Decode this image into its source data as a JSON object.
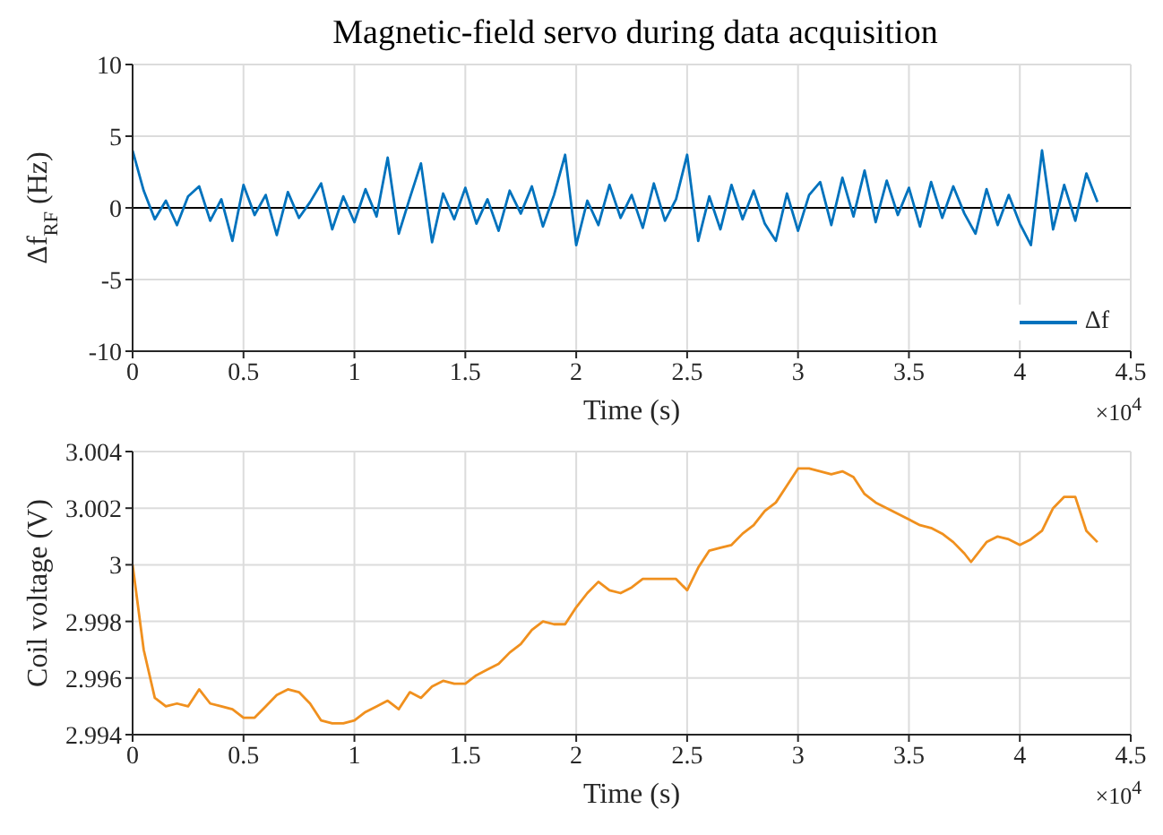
{
  "chart_data": [
    {
      "type": "line",
      "title": "Magnetic-field servo during data acquisition",
      "xlabel": "Time (s)",
      "ylabel": "Δf$_{RF}$ (Hz)",
      "annotations": [
        "×10$^{4}$"
      ],
      "x": [
        0,
        0.05,
        0.1,
        0.15,
        0.2,
        0.25,
        0.3,
        0.35,
        0.4,
        0.45,
        0.5,
        0.55,
        0.6,
        0.65,
        0.7,
        0.75,
        0.8,
        0.85,
        0.9,
        0.95,
        1,
        1.05,
        1.1,
        1.15,
        1.2,
        1.25,
        1.3,
        1.35,
        1.4,
        1.45,
        1.5,
        1.55,
        1.6,
        1.65,
        1.7,
        1.75,
        1.8,
        1.85,
        1.9,
        1.95,
        2,
        2.05,
        2.1,
        2.15,
        2.2,
        2.25,
        2.3,
        2.35,
        2.4,
        2.45,
        2.5,
        2.55,
        2.6,
        2.65,
        2.7,
        2.75,
        2.8,
        2.85,
        2.9,
        2.95,
        3,
        3.05,
        3.1,
        3.15,
        3.2,
        3.25,
        3.3,
        3.35,
        3.4,
        3.45,
        3.5,
        3.55,
        3.6,
        3.65,
        3.7,
        3.75,
        3.8,
        3.85,
        3.9,
        3.95,
        4,
        4.05,
        4.1,
        4.15,
        4.2,
        4.25,
        4.3,
        4.35
      ],
      "series": [
        {
          "name": "Δf",
          "color": "#0072bd",
          "values": [
            4,
            1.2,
            -0.8,
            0.5,
            -1.2,
            0.8,
            1.5,
            -0.9,
            0.6,
            -2.3,
            1.6,
            -0.5,
            0.9,
            -1.9,
            1.1,
            -0.7,
            0.4,
            1.7,
            -1.5,
            0.8,
            -1.0,
            1.3,
            -0.6,
            3.5,
            -1.8,
            0.7,
            3.1,
            -2.4,
            1.0,
            -0.8,
            1.4,
            -1.1,
            0.6,
            -1.6,
            1.2,
            -0.4,
            1.5,
            -1.3,
            0.9,
            3.7,
            -2.6,
            0.5,
            -1.2,
            1.6,
            -0.7,
            0.9,
            -1.4,
            1.7,
            -0.9,
            0.6,
            3.7,
            -2.3,
            0.8,
            -1.5,
            1.6,
            -0.8,
            1.2,
            -1.1,
            -2.3,
            1.0,
            -1.6,
            0.9,
            1.8,
            -1.2,
            2.1,
            -0.6,
            2.6,
            -1.0,
            1.9,
            -0.5,
            1.4,
            -1.3,
            1.8,
            -0.7,
            1.5,
            -0.4,
            -1.8,
            1.3,
            -1.2,
            0.9,
            -1.1,
            -2.6,
            4.0,
            -1.5,
            1.6,
            -0.9,
            2.4,
            0.4
          ]
        }
      ],
      "xlim": [
        0,
        4.5
      ],
      "xticks": [
        0,
        0.5,
        1,
        1.5,
        2,
        2.5,
        3,
        3.5,
        4,
        4.5
      ],
      "ylim": [
        -10,
        10
      ],
      "yticks": [
        -10,
        -5,
        0,
        5,
        10
      ],
      "grid": true,
      "legend": "bottom right",
      "ref_lines": [
        {
          "axis": "y",
          "value": 0,
          "color": "#000000"
        }
      ]
    },
    {
      "type": "line",
      "xlabel": "Time (s)",
      "ylabel": "Coil voltage (V)",
      "annotations": [
        "×10$^{4}$"
      ],
      "x": [
        0,
        0.05,
        0.1,
        0.15,
        0.2,
        0.25,
        0.3,
        0.35,
        0.4,
        0.45,
        0.5,
        0.55,
        0.6,
        0.65,
        0.7,
        0.75,
        0.8,
        0.85,
        0.9,
        0.95,
        1,
        1.05,
        1.1,
        1.15,
        1.2,
        1.25,
        1.3,
        1.35,
        1.4,
        1.45,
        1.5,
        1.55,
        1.6,
        1.65,
        1.7,
        1.75,
        1.8,
        1.85,
        1.9,
        1.95,
        2,
        2.05,
        2.1,
        2.15,
        2.2,
        2.25,
        2.3,
        2.35,
        2.4,
        2.45,
        2.5,
        2.55,
        2.6,
        2.65,
        2.7,
        2.75,
        2.8,
        2.85,
        2.9,
        2.95,
        3,
        3.05,
        3.1,
        3.15,
        3.2,
        3.25,
        3.3,
        3.35,
        3.4,
        3.45,
        3.5,
        3.55,
        3.6,
        3.65,
        3.7,
        3.75,
        3.78,
        3.85,
        3.9,
        3.95,
        4,
        4.05,
        4.1,
        4.15,
        4.2,
        4.25,
        4.3,
        4.35
      ],
      "series": [
        {
          "color": "#f0901e",
          "values": [
            3.0,
            2.997,
            2.9953,
            2.995,
            2.9951,
            2.995,
            2.9956,
            2.9951,
            2.995,
            2.9949,
            2.9946,
            2.9946,
            2.995,
            2.9954,
            2.9956,
            2.9955,
            2.9951,
            2.9945,
            2.9944,
            2.9944,
            2.9945,
            2.9948,
            2.995,
            2.9952,
            2.9949,
            2.9955,
            2.9953,
            2.9957,
            2.9959,
            2.9958,
            2.9958,
            2.9961,
            2.9963,
            2.9965,
            2.9969,
            2.9972,
            2.9977,
            2.998,
            2.9979,
            2.9979,
            2.9985,
            2.999,
            2.9994,
            2.9991,
            2.999,
            2.9992,
            2.9995,
            2.9995,
            2.9995,
            2.9995,
            2.9991,
            2.9999,
            3.0005,
            3.0006,
            3.0007,
            3.0011,
            3.0014,
            3.0019,
            3.0022,
            3.0028,
            3.0034,
            3.0034,
            3.0033,
            3.0032,
            3.0033,
            3.0031,
            3.0025,
            3.0022,
            3.002,
            3.0018,
            3.0016,
            3.0014,
            3.0013,
            3.0011,
            3.0008,
            3.0004,
            3.0001,
            3.0008,
            3.001,
            3.0009,
            3.0007,
            3.0009,
            3.0012,
            3.002,
            3.0024,
            3.0024,
            3.0012,
            3.0008
          ]
        }
      ],
      "xlim": [
        0,
        4.5
      ],
      "xticks": [
        0,
        0.5,
        1,
        1.5,
        2,
        2.5,
        3,
        3.5,
        4,
        4.5
      ],
      "ylim": [
        2.994,
        3.004
      ],
      "yticks": [
        2.994,
        2.996,
        2.998,
        3,
        3.002,
        3.004
      ],
      "grid": true
    }
  ]
}
